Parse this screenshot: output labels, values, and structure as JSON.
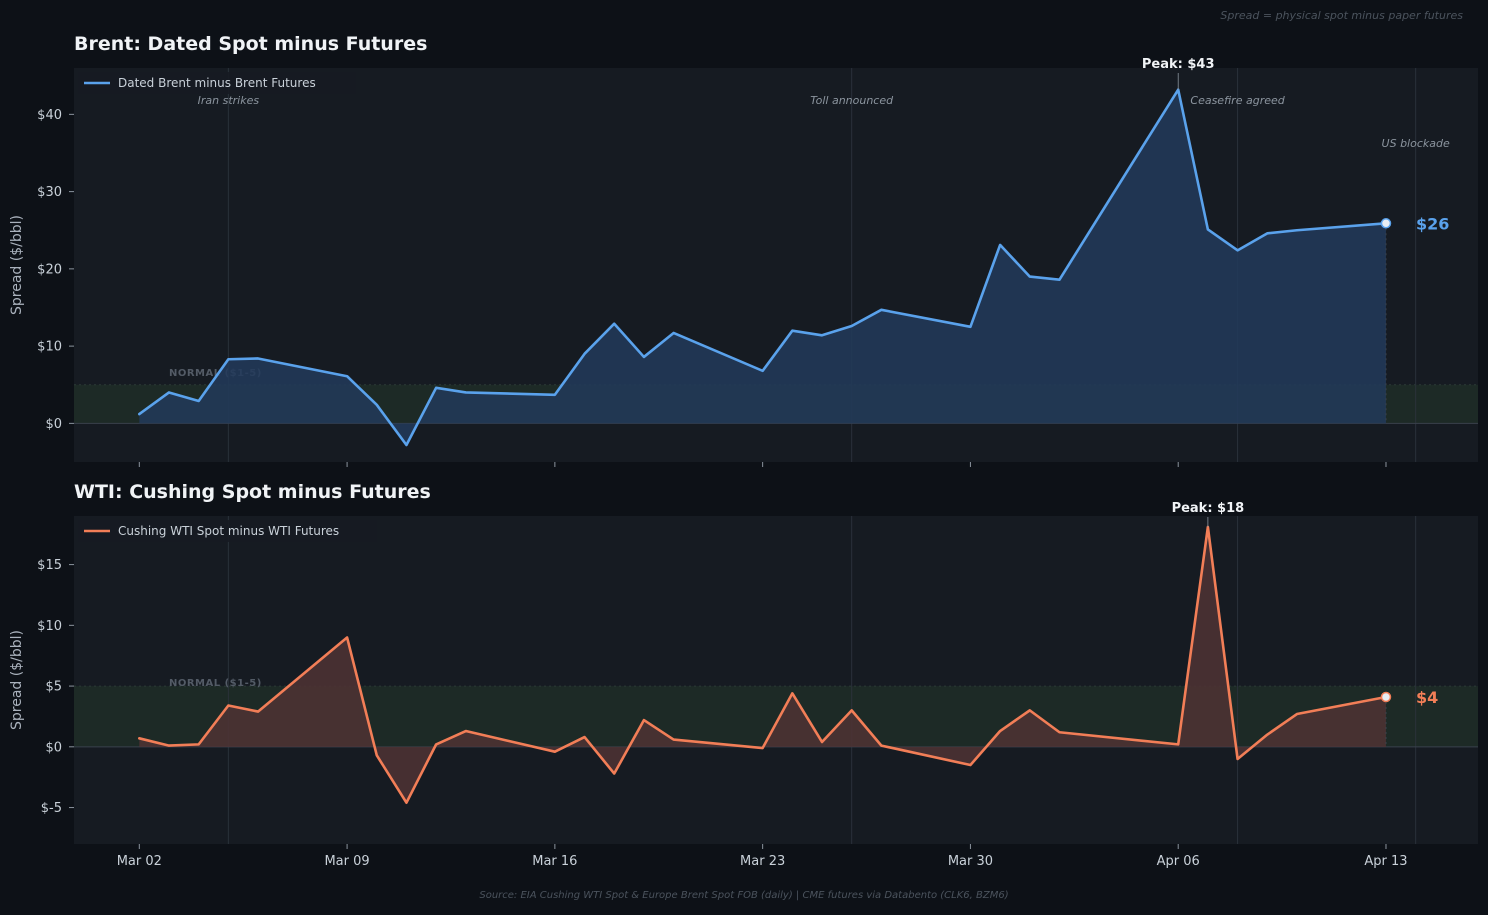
{
  "note": "Spread = physical spot minus paper futures",
  "footer": "Source: EIA Cushing WTI Spot & Europe Brent Spot FOB (daily)  |  CME futures via Databento (CLK6, BZM6)",
  "colors": {
    "background": "#0d1117",
    "panel": "#161b22",
    "normal_band": "#1d2a26",
    "brent": "#5aa2ec",
    "brent_fill": "#22395a",
    "wti": "#f27e57",
    "wti_fill": "#4f3234"
  },
  "x_ticks": [
    {
      "day": 0,
      "label": "Mar 02"
    },
    {
      "day": 7,
      "label": "Mar 09"
    },
    {
      "day": 14,
      "label": "Mar 16"
    },
    {
      "day": 21,
      "label": "Mar 23"
    },
    {
      "day": 28,
      "label": "Mar 30"
    },
    {
      "day": 35,
      "label": "Apr 06"
    },
    {
      "day": 42,
      "label": "Apr 13"
    }
  ],
  "events": [
    {
      "day": 3,
      "label": "Iran strikes"
    },
    {
      "day": 24,
      "label": "Toll announced"
    },
    {
      "day": 37,
      "label": "Ceasefire agreed"
    },
    {
      "day": 43,
      "label": "US blockade"
    }
  ],
  "chart_data": [
    {
      "type": "area",
      "id": "brent",
      "title": "Brent: Dated Spot minus Futures",
      "ylabel": "Spread ($/bbl)",
      "legend": "Dated Brent minus Brent Futures",
      "ylim": [
        -5,
        46
      ],
      "xlim": [
        -2.2,
        45.1
      ],
      "yticks": [
        {
          "value": 0,
          "label": "$0"
        },
        {
          "value": 10,
          "label": "$10"
        },
        {
          "value": 20,
          "label": "$20"
        },
        {
          "value": 30,
          "label": "$30"
        },
        {
          "value": 40,
          "label": "$40"
        }
      ],
      "normal_band": [
        0,
        5
      ],
      "normal_label": "NORMAL ($1-5)",
      "peak_label": "Peak: $43",
      "last_label": "$26",
      "x": [
        0,
        1,
        2,
        3,
        4,
        7,
        8,
        9,
        10,
        11,
        14,
        15,
        16,
        17,
        18,
        21,
        22,
        23,
        24,
        25,
        28,
        29,
        30,
        31,
        35,
        36,
        37,
        38,
        39,
        42
      ],
      "values": [
        1.2,
        4.0,
        2.9,
        8.3,
        8.4,
        6.1,
        2.4,
        -2.8,
        4.6,
        4.0,
        3.7,
        9.0,
        12.9,
        8.6,
        11.7,
        6.8,
        12.0,
        11.4,
        12.6,
        14.7,
        12.5,
        23.1,
        19.0,
        18.6,
        43.2,
        25.1,
        22.4,
        24.6,
        25.0,
        25.9
      ]
    },
    {
      "type": "area",
      "id": "wti",
      "title": "WTI: Cushing Spot minus Futures",
      "ylabel": "Spread ($/bbl)",
      "legend": "Cushing WTI Spot minus WTI Futures",
      "ylim": [
        -8,
        19
      ],
      "xlim": [
        -2.2,
        45.1
      ],
      "yticks": [
        {
          "value": -5,
          "label": "$-5"
        },
        {
          "value": 0,
          "label": "$0"
        },
        {
          "value": 5,
          "label": "$5"
        },
        {
          "value": 10,
          "label": "$10"
        },
        {
          "value": 15,
          "label": "$15"
        }
      ],
      "normal_band": [
        0,
        5
      ],
      "normal_label": "NORMAL ($1-5)",
      "peak_label": "Peak: $18",
      "last_label": "$4",
      "x": [
        0,
        1,
        2,
        3,
        4,
        7,
        8,
        9,
        10,
        11,
        14,
        15,
        16,
        17,
        18,
        21,
        22,
        23,
        24,
        25,
        28,
        29,
        30,
        31,
        35,
        36,
        37,
        38,
        39,
        42
      ],
      "values": [
        0.7,
        0.1,
        0.2,
        3.4,
        2.9,
        9.0,
        -0.7,
        -4.6,
        0.2,
        1.3,
        -0.4,
        0.8,
        -2.2,
        2.2,
        0.6,
        -0.1,
        4.4,
        0.4,
        3.0,
        0.1,
        -1.5,
        1.3,
        3.0,
        1.2,
        0.2,
        18.1,
        -1.0,
        1.0,
        2.7,
        4.1
      ]
    }
  ]
}
